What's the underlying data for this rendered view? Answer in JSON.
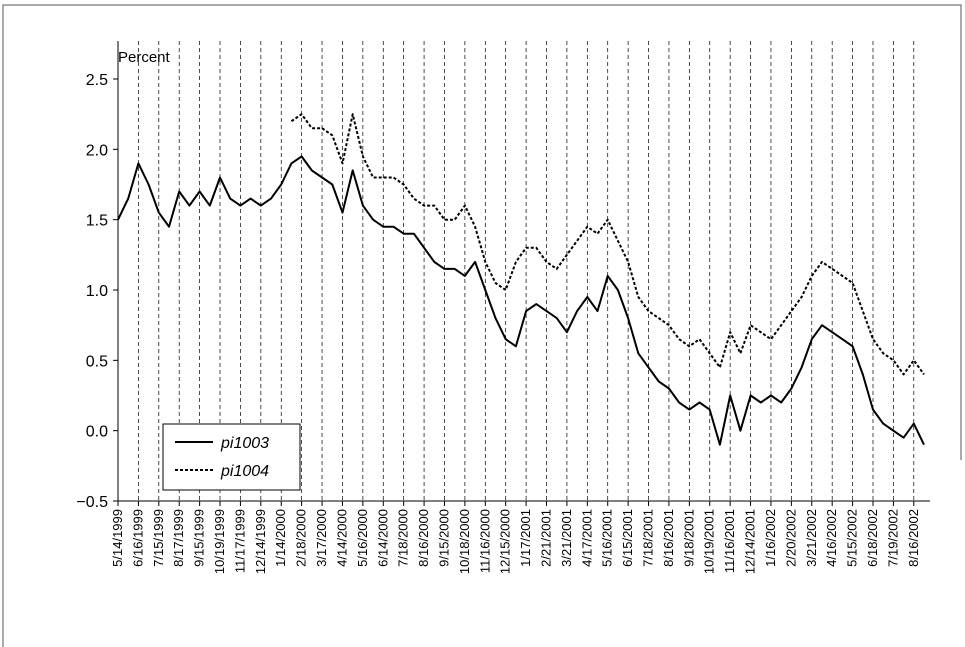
{
  "chart_data": {
    "type": "line",
    "y_label": "Percent",
    "categories": [
      "5/14/1999",
      null,
      "6/16/1999",
      null,
      "7/15/1999",
      null,
      "8/17/1999",
      null,
      "9/15/1999",
      null,
      "10/19/1999",
      null,
      "11/17/1999",
      null,
      "12/14/1999",
      null,
      "1/14/2000",
      null,
      "2/18/2000",
      null,
      "3/17/2000",
      null,
      "4/14/2000",
      null,
      "5/16/2000",
      null,
      "6/14/2000",
      null,
      "7/18/2000",
      null,
      "8/16/2000",
      null,
      "9/15/2000",
      null,
      "10/18/2000",
      null,
      "11/16/2000",
      null,
      "12/15/2000",
      null,
      "1/17/2001",
      null,
      "2/21/2001",
      null,
      "3/21/2001",
      null,
      "4/17/2001",
      null,
      "5/16/2001",
      null,
      "6/15/2001",
      null,
      "7/18/2001",
      null,
      "8/16/2001",
      null,
      "9/18/2001",
      null,
      "10/19/2001",
      null,
      "11/16/2001",
      null,
      "12/14/2001",
      null,
      "1/16/2002",
      null,
      "2/20/2002",
      null,
      "3/21/2002",
      null,
      "4/16/2002",
      null,
      "5/15/2002",
      null,
      "6/18/2002",
      null,
      "7/19/2002",
      null,
      "8/16/2002",
      null
    ],
    "series": [
      {
        "name": "pi1003",
        "color": "#000000",
        "linestyle": "solid",
        "values": [
          1.5,
          1.65,
          1.9,
          1.75,
          1.55,
          1.45,
          1.7,
          1.6,
          1.7,
          1.6,
          1.8,
          1.65,
          1.6,
          1.65,
          1.6,
          1.65,
          1.75,
          1.9,
          1.95,
          1.85,
          1.8,
          1.75,
          1.55,
          1.85,
          1.6,
          1.5,
          1.45,
          1.45,
          1.4,
          1.4,
          1.3,
          1.2,
          1.15,
          1.15,
          1.1,
          1.2,
          1.0,
          0.8,
          0.65,
          0.6,
          0.85,
          0.9,
          0.85,
          0.8,
          0.7,
          0.85,
          0.95,
          0.85,
          1.1,
          1.0,
          0.8,
          0.55,
          0.45,
          0.35,
          0.3,
          0.2,
          0.15,
          0.2,
          0.15,
          -0.1,
          0.25,
          0.0,
          0.25,
          0.2,
          0.25,
          0.2,
          0.3,
          0.45,
          0.65,
          0.75,
          0.7,
          0.65,
          0.6,
          0.4,
          0.15,
          0.05,
          0.0,
          -0.05,
          0.05,
          -0.1
        ]
      },
      {
        "name": "pi1004",
        "color": "#000000",
        "linestyle": "dotted",
        "values": [
          null,
          null,
          null,
          null,
          null,
          null,
          null,
          null,
          null,
          null,
          null,
          null,
          null,
          null,
          null,
          null,
          null,
          2.2,
          2.25,
          2.15,
          2.15,
          2.1,
          1.9,
          2.25,
          1.95,
          1.8,
          1.8,
          1.8,
          1.75,
          1.65,
          1.6,
          1.6,
          1.5,
          1.5,
          1.6,
          1.45,
          1.2,
          1.05,
          1.0,
          1.2,
          1.3,
          1.3,
          1.2,
          1.15,
          1.25,
          1.35,
          1.45,
          1.4,
          1.5,
          1.35,
          1.2,
          0.95,
          0.85,
          0.8,
          0.75,
          0.65,
          0.6,
          0.65,
          0.55,
          0.45,
          0.7,
          0.55,
          0.75,
          0.7,
          0.65,
          0.75,
          0.85,
          0.95,
          1.1,
          1.2,
          1.15,
          1.1,
          1.05,
          0.85,
          0.65,
          0.55,
          0.5,
          0.4,
          0.5,
          0.4
        ]
      }
    ],
    "ylim": [
      -0.5,
      2.5
    ],
    "yticks": [
      2.5,
      {
        "value": 2,
        "label": "2.0"
      },
      1.5,
      {
        "value": 1,
        "label": "1.0"
      },
      0.5,
      {
        "value": 0,
        "label": "0.0"
      },
      {
        "value": -0.5,
        "label": "−0.5"
      }
    ],
    "category_dividers": true,
    "legend": "lower left"
  }
}
